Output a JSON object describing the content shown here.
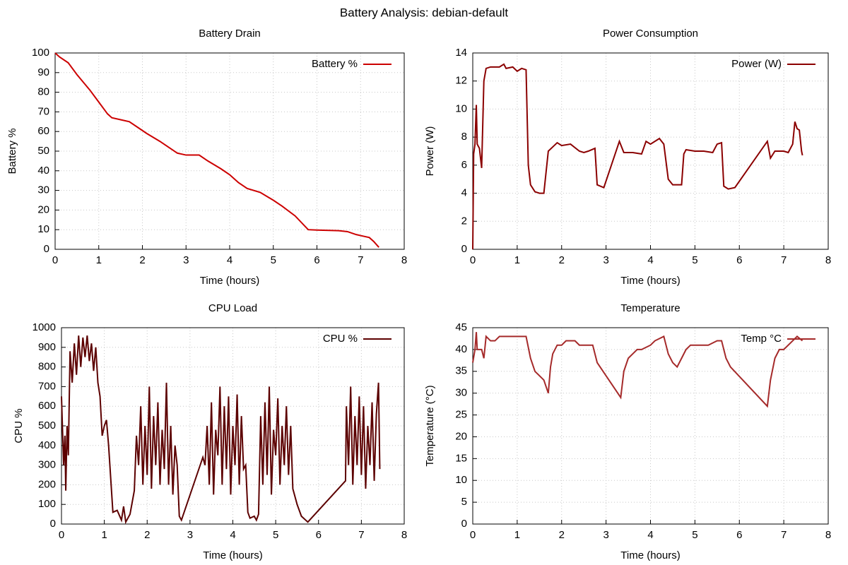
{
  "title": "Battery Analysis: debian-default",
  "chart_data": [
    {
      "type": "line",
      "title": "Battery Drain",
      "xlabel": "Time (hours)",
      "ylabel": "Battery %",
      "x": [
        0,
        0.1,
        0.3,
        0.5,
        0.8,
        1.0,
        1.2,
        1.3,
        1.5,
        1.7,
        1.9,
        2.1,
        2.4,
        2.6,
        2.8,
        3.0,
        3.3,
        3.5,
        3.8,
        4.0,
        4.2,
        4.4,
        4.7,
        5.0,
        5.2,
        5.5,
        5.8,
        6.0,
        6.5,
        6.7,
        6.9,
        7.0,
        7.2,
        7.3,
        7.42
      ],
      "series": [
        {
          "name": "Battery %",
          "color": "#cc0000",
          "values": [
            100,
            98,
            95,
            89,
            81,
            75,
            69,
            67,
            66,
            65,
            62,
            59,
            55,
            52,
            49,
            48,
            48,
            45,
            41,
            38,
            34,
            31,
            29,
            25,
            22,
            17,
            10,
            9.8,
            9.5,
            9,
            7.5,
            7,
            6,
            4,
            1
          ]
        }
      ],
      "xlim": [
        0,
        8
      ],
      "xticks": [
        0,
        1,
        2,
        3,
        4,
        5,
        6,
        7,
        8
      ],
      "ylim": [
        0,
        100
      ],
      "yticks": [
        0,
        10,
        20,
        30,
        40,
        50,
        60,
        70,
        80,
        90,
        100
      ],
      "grid": true,
      "legend": "upper right"
    },
    {
      "type": "line",
      "title": "Power Consumption",
      "xlabel": "Time (hours)",
      "ylabel": "Power (W)",
      "x": [
        0,
        0.02,
        0.05,
        0.08,
        0.1,
        0.15,
        0.2,
        0.25,
        0.3,
        0.4,
        0.6,
        0.7,
        0.75,
        0.9,
        1.0,
        1.1,
        1.2,
        1.25,
        1.3,
        1.4,
        1.5,
        1.6,
        1.7,
        1.8,
        1.9,
        2.0,
        2.2,
        2.4,
        2.5,
        2.6,
        2.75,
        2.8,
        2.95,
        3.3,
        3.4,
        3.6,
        3.8,
        3.9,
        4.0,
        4.2,
        4.3,
        4.4,
        4.5,
        4.6,
        4.7,
        4.75,
        4.8,
        5.0,
        5.2,
        5.4,
        5.5,
        5.6,
        5.65,
        5.75,
        5.9,
        6.63,
        6.7,
        6.8,
        7.0,
        7.1,
        7.2,
        7.25,
        7.3,
        7.35,
        7.4,
        7.42
      ],
      "series": [
        {
          "name": "Power (W)",
          "color": "#8b0000",
          "values": [
            0,
            6.8,
            7.5,
            10.3,
            7.5,
            7.2,
            5.8,
            12,
            12.9,
            13,
            13,
            13.2,
            12.9,
            13,
            12.7,
            12.9,
            12.8,
            6,
            4.6,
            4.1,
            4,
            4,
            7,
            7.3,
            7.6,
            7.4,
            7.5,
            7.0,
            6.9,
            7,
            7.2,
            4.6,
            4.4,
            7.7,
            6.9,
            6.9,
            6.8,
            7.7,
            7.5,
            7.9,
            7.5,
            5,
            4.6,
            4.6,
            4.6,
            6.8,
            7.1,
            7,
            7,
            6.9,
            7.5,
            7.6,
            4.5,
            4.3,
            4.4,
            7.7,
            6.5,
            7.0,
            7.0,
            6.9,
            7.5,
            9.1,
            8.6,
            8.5,
            7.0,
            6.7
          ]
        }
      ],
      "xlim": [
        0,
        8
      ],
      "xticks": [
        0,
        1,
        2,
        3,
        4,
        5,
        6,
        7,
        8
      ],
      "ylim": [
        0,
        14
      ],
      "yticks": [
        0,
        2,
        4,
        6,
        8,
        10,
        12,
        14
      ],
      "grid": true,
      "legend": "upper right"
    },
    {
      "type": "line",
      "title": "CPU Load",
      "xlabel": "Time (hours)",
      "ylabel": "CPU %",
      "x": [
        0,
        0.05,
        0.08,
        0.1,
        0.13,
        0.16,
        0.2,
        0.25,
        0.3,
        0.35,
        0.4,
        0.45,
        0.5,
        0.55,
        0.6,
        0.65,
        0.7,
        0.75,
        0.8,
        0.85,
        0.9,
        0.95,
        1.0,
        1.05,
        1.1,
        1.2,
        1.3,
        1.4,
        1.45,
        1.5,
        1.6,
        1.7,
        1.75,
        1.8,
        1.85,
        1.9,
        1.95,
        2.0,
        2.05,
        2.1,
        2.15,
        2.2,
        2.25,
        2.3,
        2.35,
        2.4,
        2.45,
        2.5,
        2.55,
        2.6,
        2.65,
        2.7,
        2.75,
        2.8,
        3.3,
        3.35,
        3.4,
        3.45,
        3.5,
        3.55,
        3.6,
        3.65,
        3.7,
        3.75,
        3.8,
        3.85,
        3.9,
        3.95,
        4.0,
        4.05,
        4.1,
        4.15,
        4.2,
        4.25,
        4.3,
        4.35,
        4.4,
        4.5,
        4.55,
        4.6,
        4.65,
        4.7,
        4.75,
        4.8,
        4.85,
        4.9,
        4.95,
        5.0,
        5.05,
        5.1,
        5.15,
        5.2,
        5.25,
        5.3,
        5.35,
        5.4,
        5.5,
        5.6,
        5.7,
        5.75,
        6.63,
        6.65,
        6.7,
        6.75,
        6.8,
        6.85,
        6.9,
        6.95,
        7.0,
        7.05,
        7.1,
        7.15,
        7.2,
        7.25,
        7.3,
        7.35,
        7.4,
        7.43
      ],
      "series": [
        {
          "name": "CPU %",
          "color": "#5c0000",
          "values": [
            650,
            300,
            450,
            170,
            500,
            350,
            880,
            720,
            920,
            760,
            960,
            800,
            950,
            850,
            960,
            830,
            920,
            780,
            900,
            720,
            650,
            450,
            500,
            530,
            400,
            60,
            70,
            20,
            90,
            10,
            50,
            170,
            450,
            300,
            600,
            200,
            500,
            250,
            700,
            180,
            550,
            300,
            620,
            200,
            480,
            280,
            720,
            200,
            500,
            150,
            400,
            300,
            40,
            20,
            340,
            300,
            500,
            200,
            620,
            150,
            480,
            350,
            700,
            200,
            600,
            280,
            650,
            150,
            500,
            300,
            660,
            200,
            550,
            280,
            300,
            60,
            30,
            40,
            20,
            50,
            550,
            200,
            620,
            250,
            700,
            150,
            480,
            350,
            640,
            200,
            500,
            300,
            600,
            250,
            500,
            180,
            100,
            40,
            20,
            10,
            220,
            600,
            300,
            700,
            200,
            550,
            300,
            650,
            250,
            600,
            180,
            500,
            300,
            620,
            220,
            560,
            720,
            280
          ]
        }
      ],
      "xlim": [
        0,
        8
      ],
      "xticks": [
        0,
        1,
        2,
        3,
        4,
        5,
        6,
        7,
        8
      ],
      "ylim": [
        0,
        1000
      ],
      "yticks": [
        0,
        100,
        200,
        300,
        400,
        500,
        600,
        700,
        800,
        900,
        1000
      ],
      "grid": true,
      "legend": "upper right"
    },
    {
      "type": "line",
      "title": "Temperature",
      "xlabel": "Time (hours)",
      "ylabel": "Temperature (°C)",
      "x": [
        0,
        0.05,
        0.08,
        0.1,
        0.2,
        0.25,
        0.3,
        0.4,
        0.5,
        0.6,
        0.8,
        1.0,
        1.2,
        1.3,
        1.4,
        1.5,
        1.6,
        1.7,
        1.75,
        1.8,
        1.9,
        2.0,
        2.1,
        2.3,
        2.4,
        2.7,
        2.8,
        3.33,
        3.4,
        3.5,
        3.6,
        3.7,
        3.8,
        4.0,
        4.1,
        4.3,
        4.4,
        4.5,
        4.6,
        4.7,
        4.8,
        4.9,
        5.0,
        5.3,
        5.5,
        5.6,
        5.7,
        5.8,
        6.63,
        6.7,
        6.8,
        6.9,
        7.0,
        7.2,
        7.3,
        7.42
      ],
      "series": [
        {
          "name": "Temp °C",
          "color": "#a52a2a",
          "values": [
            37,
            40,
            44,
            40,
            40,
            38,
            43,
            42,
            42,
            43,
            43,
            43,
            43,
            38,
            35,
            34,
            33,
            30,
            36,
            39,
            41,
            41,
            42,
            42,
            41,
            41,
            37,
            29,
            35,
            38,
            39,
            40,
            40,
            41,
            42,
            43,
            39,
            37,
            36,
            38,
            40,
            41,
            41,
            41,
            42,
            42,
            38,
            36,
            27,
            33,
            38,
            40,
            40,
            42,
            43,
            42
          ]
        }
      ],
      "xlim": [
        0,
        8
      ],
      "xticks": [
        0,
        1,
        2,
        3,
        4,
        5,
        6,
        7,
        8
      ],
      "ylim": [
        0,
        45
      ],
      "yticks": [
        0,
        5,
        10,
        15,
        20,
        25,
        30,
        35,
        40,
        45
      ],
      "grid": true,
      "legend": "upper right"
    }
  ]
}
